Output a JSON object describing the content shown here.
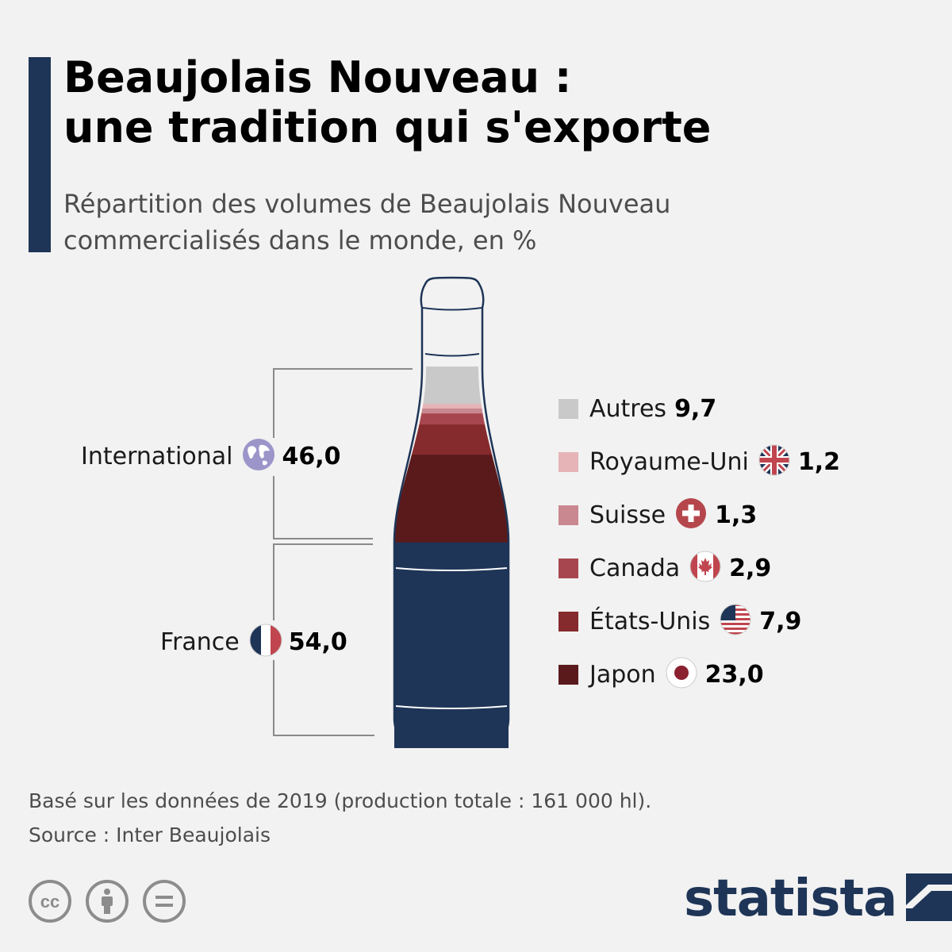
{
  "title_line1": "Beaujolais Nouveau :",
  "title_line2": "une tradition qui s'exporte",
  "subtitle_line1": "Répartition des volumes de Beaujolais Nouveau",
  "subtitle_line2": "commercialisés dans le monde, en %",
  "groups": {
    "international": {
      "label": "International",
      "value": "46,0",
      "icon": "globe-icon"
    },
    "france": {
      "label": "France",
      "value": "54,0",
      "icon": "france-flag-icon"
    }
  },
  "legend": [
    {
      "label": "Autres",
      "value": "9,7",
      "color": "#c9c9c9",
      "icon": ""
    },
    {
      "label": "Royaume-Uni",
      "value": "1,2",
      "color": "#e6b4b7",
      "icon": "uk-flag-icon"
    },
    {
      "label": "Suisse",
      "value": "1,3",
      "color": "#c9878f",
      "icon": "swiss-flag-icon"
    },
    {
      "label": "Canada",
      "value": "2,9",
      "color": "#a84650",
      "icon": "canada-flag-icon"
    },
    {
      "label": "États-Unis",
      "value": "7,9",
      "color": "#852a2d",
      "icon": "us-flag-icon"
    },
    {
      "label": "Japon",
      "value": "23,0",
      "color": "#5a1a1c",
      "icon": "japan-flag-icon"
    }
  ],
  "footnote_line1": "Basé sur les données de 2019 (production totale : 161 000 hl).",
  "footnote_line2": "Source : Inter Beaujolais",
  "brand": "statista",
  "colors": {
    "france": "#1e3557",
    "accent": "#1e3557",
    "background": "#f2f2f2"
  },
  "chart_data": {
    "type": "stacked-bar",
    "title": "Beaujolais Nouveau : une tradition qui s'exporte",
    "subtitle": "Répartition des volumes de Beaujolais Nouveau commercialisés dans le monde, en %",
    "categories": [
      "France",
      "Japon",
      "États-Unis",
      "Canada",
      "Suisse",
      "Royaume-Uni",
      "Autres"
    ],
    "values": [
      54.0,
      23.0,
      7.9,
      2.9,
      1.3,
      1.2,
      9.7
    ],
    "groups": [
      {
        "name": "France",
        "value": 54.0
      },
      {
        "name": "International",
        "value": 46.0
      }
    ],
    "colors": [
      "#1e3557",
      "#5a1a1c",
      "#852a2d",
      "#a84650",
      "#c9878f",
      "#e6b4b7",
      "#c9c9c9"
    ]
  }
}
